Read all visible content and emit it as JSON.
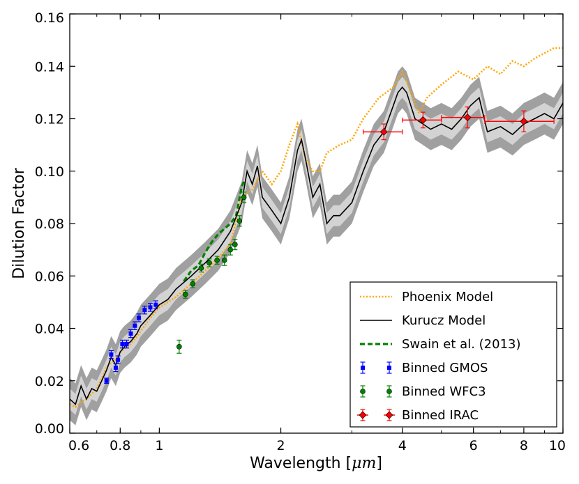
{
  "chart_data": {
    "type": "line",
    "xscale": "log",
    "xlabel_prefix": "Wavelength [",
    "xlabel_unit": "μm",
    "xlabel_suffix": "]",
    "ylabel": "Dilution Factor",
    "xlim": [
      0.6,
      10
    ],
    "ylim": [
      0.0,
      0.16
    ],
    "x_ticks": [
      {
        "value": 0.6,
        "label": "0.6"
      },
      {
        "value": 0.8,
        "label": "0.8"
      },
      {
        "value": 1,
        "label": "1"
      },
      {
        "value": 2,
        "label": "2"
      },
      {
        "value": 4,
        "label": "4"
      },
      {
        "value": 6,
        "label": "6"
      },
      {
        "value": 8,
        "label": "8"
      },
      {
        "value": 10,
        "label": "10"
      }
    ],
    "y_ticks": [
      {
        "value": 0.0,
        "label": "0.00"
      },
      {
        "value": 0.02,
        "label": "0.02"
      },
      {
        "value": 0.04,
        "label": "0.04"
      },
      {
        "value": 0.06,
        "label": "0.06"
      },
      {
        "value": 0.08,
        "label": "0.08"
      },
      {
        "value": 0.1,
        "label": "0.10"
      },
      {
        "value": 0.12,
        "label": "0.12"
      },
      {
        "value": 0.14,
        "label": "0.14"
      },
      {
        "value": 0.16,
        "label": "0.16"
      }
    ],
    "legend_position": "bottom-right",
    "legend": [
      {
        "label": "Phoenix Model",
        "style": "dotted",
        "color": "#ffa500"
      },
      {
        "label": "Kurucz Model",
        "style": "solid",
        "color": "#000000"
      },
      {
        "label": "Swain et al. (2013)",
        "style": "dashed",
        "color": "#008000"
      },
      {
        "label": "Binned GMOS",
        "style": "errorbar-square",
        "color": "#0000ff"
      },
      {
        "label": "Binned WFC3",
        "style": "errorbar-circle",
        "color": "#008000"
      },
      {
        "label": "Binned IRAC",
        "style": "errorbar-diamond",
        "color": "#ff0000"
      }
    ],
    "colors": {
      "phoenix": "#ffa500",
      "kurucz": "#000000",
      "swain": "#008000",
      "gmos": "#0000ff",
      "wfc3": "#008000",
      "irac": "#ff0000",
      "band_inner": "#d3d3d3",
      "band_outer": "#a0a0a0"
    },
    "kurucz": {
      "x": [
        0.6,
        0.62,
        0.64,
        0.66,
        0.68,
        0.7,
        0.72,
        0.74,
        0.76,
        0.78,
        0.8,
        0.82,
        0.85,
        0.88,
        0.9,
        0.95,
        1.0,
        1.05,
        1.1,
        1.2,
        1.3,
        1.4,
        1.5,
        1.6,
        1.65,
        1.7,
        1.75,
        1.8,
        1.9,
        2.0,
        2.1,
        2.2,
        2.25,
        2.3,
        2.4,
        2.5,
        2.6,
        2.7,
        2.8,
        3.0,
        3.2,
        3.4,
        3.6,
        3.8,
        3.9,
        4.0,
        4.1,
        4.3,
        4.5,
        4.7,
        5.0,
        5.3,
        5.6,
        5.9,
        6.2,
        6.5,
        7.0,
        7.5,
        8.0,
        8.5,
        9.0,
        9.5,
        10.0
      ],
      "y": [
        0.013,
        0.011,
        0.018,
        0.013,
        0.017,
        0.016,
        0.02,
        0.024,
        0.029,
        0.026,
        0.031,
        0.033,
        0.035,
        0.038,
        0.041,
        0.045,
        0.049,
        0.051,
        0.055,
        0.06,
        0.065,
        0.07,
        0.077,
        0.088,
        0.1,
        0.095,
        0.102,
        0.09,
        0.085,
        0.08,
        0.09,
        0.108,
        0.112,
        0.105,
        0.09,
        0.095,
        0.08,
        0.083,
        0.083,
        0.088,
        0.1,
        0.11,
        0.115,
        0.125,
        0.13,
        0.132,
        0.13,
        0.12,
        0.118,
        0.116,
        0.118,
        0.116,
        0.12,
        0.125,
        0.128,
        0.115,
        0.117,
        0.114,
        0.118,
        0.12,
        0.122,
        0.12,
        0.126
      ]
    },
    "band_inner_halfwidth": 0.004,
    "band_outer_halfwidth": 0.008,
    "phoenix": {
      "x": [
        0.6,
        0.62,
        0.64,
        0.66,
        0.68,
        0.7,
        0.72,
        0.74,
        0.76,
        0.78,
        0.8,
        0.85,
        0.9,
        0.95,
        1.0,
        1.1,
        1.2,
        1.3,
        1.4,
        1.5,
        1.6,
        1.7,
        1.8,
        1.9,
        2.0,
        2.1,
        2.2,
        2.3,
        2.4,
        2.5,
        2.6,
        2.8,
        3.0,
        3.2,
        3.5,
        3.8,
        4.0,
        4.2,
        4.4,
        4.6,
        5.0,
        5.5,
        6.0,
        6.5,
        7.0,
        7.5,
        8.0,
        8.5,
        9.0,
        9.5,
        10.0
      ],
      "y": [
        0.011,
        0.01,
        0.012,
        0.013,
        0.015,
        0.017,
        0.021,
        0.025,
        0.027,
        0.028,
        0.031,
        0.034,
        0.039,
        0.044,
        0.048,
        0.052,
        0.057,
        0.062,
        0.067,
        0.072,
        0.09,
        0.093,
        0.1,
        0.095,
        0.1,
        0.11,
        0.118,
        0.105,
        0.1,
        0.1,
        0.107,
        0.11,
        0.112,
        0.12,
        0.128,
        0.132,
        0.138,
        0.13,
        0.122,
        0.128,
        0.133,
        0.138,
        0.135,
        0.14,
        0.137,
        0.142,
        0.14,
        0.143,
        0.145,
        0.147,
        0.147
      ]
    },
    "swain": {
      "x": [
        1.15,
        1.2,
        1.25,
        1.3,
        1.35,
        1.4,
        1.45,
        1.5,
        1.55,
        1.6,
        1.63
      ],
      "y": [
        0.058,
        0.062,
        0.064,
        0.069,
        0.073,
        0.076,
        0.078,
        0.08,
        0.083,
        0.094,
        0.097
      ]
    },
    "gmos": [
      {
        "x": 0.74,
        "y": 0.02,
        "err": 0.001
      },
      {
        "x": 0.76,
        "y": 0.03,
        "err": 0.0015
      },
      {
        "x": 0.78,
        "y": 0.025,
        "err": 0.0015
      },
      {
        "x": 0.79,
        "y": 0.028,
        "err": 0.0015
      },
      {
        "x": 0.81,
        "y": 0.034,
        "err": 0.0015
      },
      {
        "x": 0.83,
        "y": 0.034,
        "err": 0.0015
      },
      {
        "x": 0.85,
        "y": 0.038,
        "err": 0.0015
      },
      {
        "x": 0.87,
        "y": 0.041,
        "err": 0.0015
      },
      {
        "x": 0.89,
        "y": 0.044,
        "err": 0.0015
      },
      {
        "x": 0.92,
        "y": 0.047,
        "err": 0.0015
      },
      {
        "x": 0.95,
        "y": 0.048,
        "err": 0.0015
      },
      {
        "x": 0.98,
        "y": 0.049,
        "err": 0.0015
      }
    ],
    "wfc3": [
      {
        "x": 1.12,
        "y": 0.033,
        "err": 0.0025
      },
      {
        "x": 1.16,
        "y": 0.053,
        "err": 0.0015
      },
      {
        "x": 1.21,
        "y": 0.057,
        "err": 0.0015
      },
      {
        "x": 1.27,
        "y": 0.063,
        "err": 0.0015
      },
      {
        "x": 1.33,
        "y": 0.065,
        "err": 0.0015
      },
      {
        "x": 1.39,
        "y": 0.066,
        "err": 0.0015
      },
      {
        "x": 1.45,
        "y": 0.066,
        "err": 0.002
      },
      {
        "x": 1.5,
        "y": 0.07,
        "err": 0.002
      },
      {
        "x": 1.54,
        "y": 0.072,
        "err": 0.002
      },
      {
        "x": 1.58,
        "y": 0.081,
        "err": 0.002
      },
      {
        "x": 1.62,
        "y": 0.09,
        "err": 0.002
      }
    ],
    "irac": [
      {
        "x": 3.6,
        "y": 0.115,
        "xmin": 3.2,
        "xmax": 4.0,
        "err": 0.003
      },
      {
        "x": 4.5,
        "y": 0.1195,
        "xmin": 4.0,
        "xmax": 5.0,
        "err": 0.003
      },
      {
        "x": 5.8,
        "y": 0.1205,
        "xmin": 5.0,
        "xmax": 6.4,
        "err": 0.004
      },
      {
        "x": 8.0,
        "y": 0.119,
        "xmin": 6.4,
        "xmax": 9.5,
        "err": 0.004
      }
    ]
  }
}
